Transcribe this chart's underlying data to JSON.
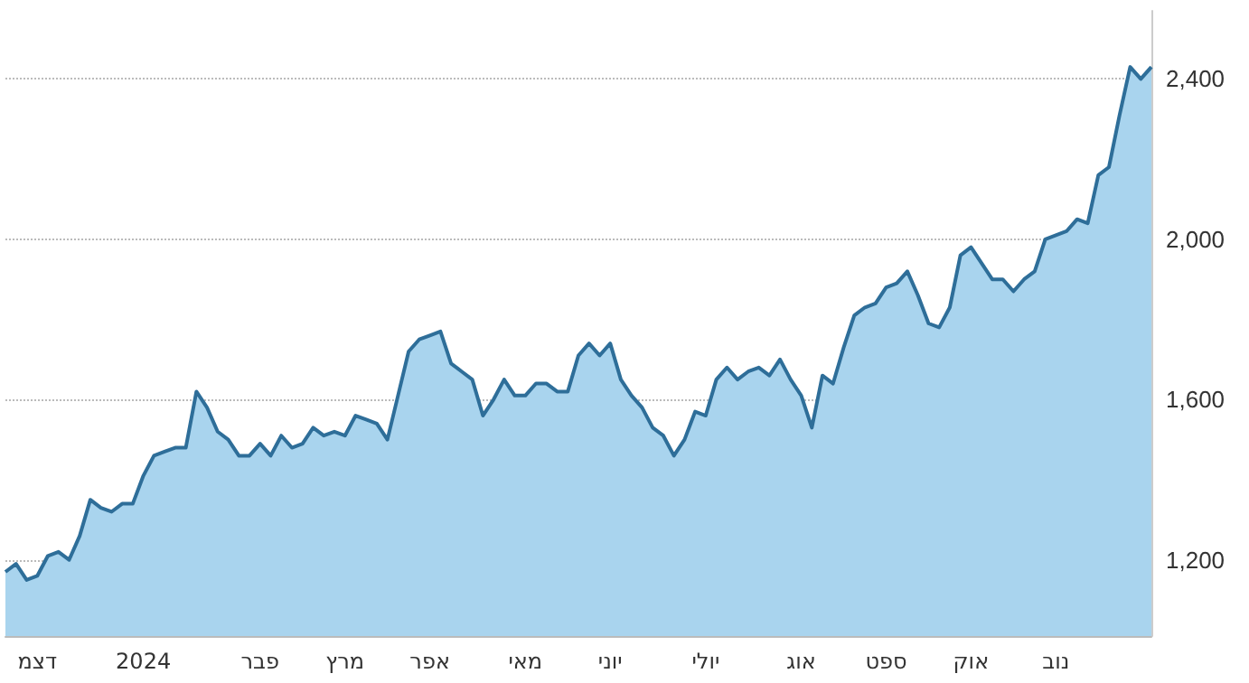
{
  "chart_data": {
    "type": "area",
    "categories": [
      null,
      null,
      null,
      "דצמ",
      null,
      null,
      null,
      null,
      null,
      null,
      null,
      null,
      null,
      "2024",
      null,
      null,
      null,
      null,
      null,
      null,
      null,
      null,
      null,
      null,
      "פבר",
      null,
      null,
      null,
      null,
      null,
      null,
      null,
      "מרץ",
      null,
      null,
      null,
      null,
      null,
      null,
      null,
      "אפר",
      null,
      null,
      null,
      null,
      null,
      null,
      null,
      null,
      "מאי",
      null,
      null,
      null,
      null,
      null,
      null,
      null,
      "יוני",
      null,
      null,
      null,
      null,
      null,
      null,
      null,
      null,
      "יולי",
      null,
      null,
      null,
      null,
      null,
      null,
      null,
      null,
      "אוג",
      null,
      null,
      null,
      null,
      null,
      null,
      null,
      "ספט",
      null,
      null,
      null,
      null,
      null,
      null,
      null,
      "אוק",
      null,
      null,
      null,
      null,
      null,
      null,
      null,
      "נוב",
      null,
      null,
      null,
      null,
      null,
      null,
      null,
      null,
      null
    ],
    "series": [
      {
        "color": "#2e6e99",
        "values": [
          1170,
          1190,
          1150,
          1160,
          1210,
          1220,
          1200,
          1260,
          1350,
          1330,
          1320,
          1340,
          1340,
          1410,
          1460,
          1470,
          1480,
          1480,
          1620,
          1580,
          1520,
          1500,
          1460,
          1460,
          1490,
          1460,
          1510,
          1480,
          1490,
          1530,
          1510,
          1520,
          1510,
          1560,
          1550,
          1540,
          1500,
          1610,
          1720,
          1750,
          1760,
          1770,
          1690,
          1670,
          1650,
          1560,
          1600,
          1650,
          1610,
          1610,
          1640,
          1640,
          1620,
          1620,
          1710,
          1740,
          1710,
          1740,
          1650,
          1610,
          1580,
          1530,
          1510,
          1460,
          1500,
          1570,
          1560,
          1650,
          1680,
          1650,
          1670,
          1680,
          1660,
          1700,
          1650,
          1610,
          1530,
          1660,
          1640,
          1730,
          1810,
          1830,
          1840,
          1880,
          1890,
          1920,
          1860,
          1790,
          1780,
          1830,
          1960,
          1980,
          1940,
          1900,
          1900,
          1870,
          1900,
          1920,
          2000,
          2010,
          2020,
          2050,
          2040,
          2160,
          2180,
          2310,
          2430,
          2400,
          2430
        ]
      }
    ],
    "ylim": [
      1010,
      2570
    ],
    "yticks": [
      {
        "value": 1200,
        "label": "1,200"
      },
      {
        "value": 1600,
        "label": "1,600"
      },
      {
        "value": 2000,
        "label": "2,000"
      },
      {
        "value": 2400,
        "label": "2,400"
      }
    ],
    "grid": "y",
    "marker": "none",
    "line_style": "solid"
  }
}
